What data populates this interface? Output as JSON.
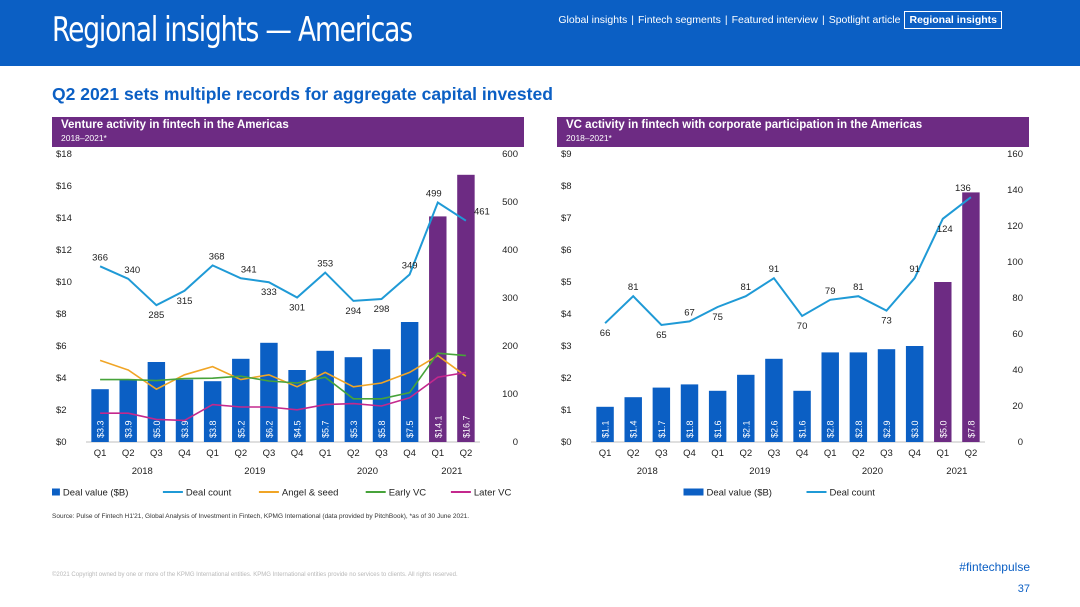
{
  "header": {
    "title": "Regional insights — Americas",
    "nav": [
      "Global insights",
      "Fintech segments",
      "Featured interview",
      "Spotlight article"
    ],
    "nav_active": "Regional insights",
    "separator": "|"
  },
  "subtitle": "Q2 2021 sets multiple records for aggregate capital invested",
  "colors": {
    "header_bg": "#0b5fc4",
    "purple": "#6d2b83",
    "bar": "#0b5fc4",
    "deal_count": "#1f9ad6",
    "angel_seed": "#f0a526",
    "early_vc": "#47a33a",
    "later_vc": "#c4288d"
  },
  "chart_data": [
    {
      "type": "bar",
      "title": "Venture activity in fintech in the Americas",
      "subtitle": "2018–2021*",
      "categories": [
        "Q1",
        "Q2",
        "Q3",
        "Q4",
        "Q1",
        "Q2",
        "Q3",
        "Q4",
        "Q1",
        "Q2",
        "Q3",
        "Q4",
        "Q1",
        "Q2"
      ],
      "years": [
        {
          "label": "2018",
          "start": 0,
          "end": 3
        },
        {
          "label": "2019",
          "start": 4,
          "end": 7
        },
        {
          "label": "2020",
          "start": 8,
          "end": 11
        },
        {
          "label": "2021",
          "start": 12,
          "end": 13
        }
      ],
      "left_axis": {
        "min": 0,
        "max": 18,
        "step": 2,
        "prefix": "$"
      },
      "right_axis": {
        "min": 0,
        "max": 600,
        "step": 100
      },
      "highlight_from": 12,
      "bars": {
        "name": "Deal value ($B)",
        "values": [
          3.3,
          3.9,
          5.0,
          3.9,
          3.8,
          5.2,
          6.2,
          4.5,
          5.7,
          5.3,
          5.8,
          7.5,
          14.1,
          16.7
        ],
        "labels": [
          "$3.3",
          "$3.9",
          "$5.0",
          "$3.9",
          "$3.8",
          "$5.2",
          "$6.2",
          "$4.5",
          "$5.7",
          "$5.3",
          "$5.8",
          "$7.5",
          "$14.1",
          "$16.7"
        ]
      },
      "lines": [
        {
          "name": "Deal count",
          "key": "deal_count",
          "values": [
            366,
            340,
            285,
            315,
            368,
            341,
            333,
            301,
            353,
            294,
            298,
            349,
            499,
            461
          ],
          "show_labels": true
        },
        {
          "name": "Angel & seed",
          "key": "angel_seed",
          "values": [
            170,
            150,
            110,
            140,
            157,
            130,
            140,
            115,
            145,
            115,
            123,
            145,
            180,
            137
          ],
          "show_labels": false
        },
        {
          "name": "Early VC",
          "key": "early_vc",
          "values": [
            130,
            130,
            128,
            132,
            133,
            137,
            127,
            123,
            135,
            90,
            90,
            103,
            185,
            180
          ],
          "show_labels": false
        },
        {
          "name": "Later VC",
          "key": "later_vc",
          "values": [
            60,
            60,
            47,
            45,
            78,
            73,
            73,
            67,
            78,
            80,
            75,
            92,
            135,
            145
          ],
          "show_labels": false
        }
      ]
    },
    {
      "type": "bar",
      "title": "VC activity in fintech with corporate participation in the Americas",
      "subtitle": "2018–2021*",
      "categories": [
        "Q1",
        "Q2",
        "Q3",
        "Q4",
        "Q1",
        "Q2",
        "Q3",
        "Q4",
        "Q1",
        "Q2",
        "Q3",
        "Q4",
        "Q1",
        "Q2"
      ],
      "years": [
        {
          "label": "2018",
          "start": 0,
          "end": 3
        },
        {
          "label": "2019",
          "start": 4,
          "end": 7
        },
        {
          "label": "2020",
          "start": 8,
          "end": 11
        },
        {
          "label": "2021",
          "start": 12,
          "end": 13
        }
      ],
      "left_axis": {
        "min": 0,
        "max": 9,
        "step": 1,
        "prefix": "$"
      },
      "right_axis": {
        "min": 0,
        "max": 160,
        "step": 20
      },
      "highlight_from": 12,
      "bars": {
        "name": "Deal value ($B)",
        "values": [
          1.1,
          1.4,
          1.7,
          1.8,
          1.6,
          2.1,
          2.6,
          1.6,
          2.8,
          2.8,
          2.9,
          3.0,
          5.0,
          7.8
        ],
        "labels": [
          "$1.1",
          "$1.4",
          "$1.7",
          "$1.8",
          "$1.6",
          "$2.1",
          "$2.6",
          "$1.6",
          "$2.8",
          "$2.8",
          "$2.9",
          "$3.0",
          "$5.0",
          "$7.8"
        ]
      },
      "lines": [
        {
          "name": "Deal count",
          "key": "deal_count",
          "values": [
            66,
            81,
            65,
            67,
            75,
            81,
            91,
            70,
            79,
            81,
            73,
            91,
            124,
            136
          ],
          "show_labels": true
        }
      ]
    }
  ],
  "source": "Source: Pulse of Fintech H1'21, Global Analysis of Investment in Fintech, KPMG International (data provided by PitchBook), *as of 30 June 2021.",
  "copyright": "©2021 Copyright owned by one or more of the KPMG International entities. KPMG International entities provide no services to clients. All rights reserved.",
  "hashtag": "#fintechpulse",
  "page_number": "37"
}
